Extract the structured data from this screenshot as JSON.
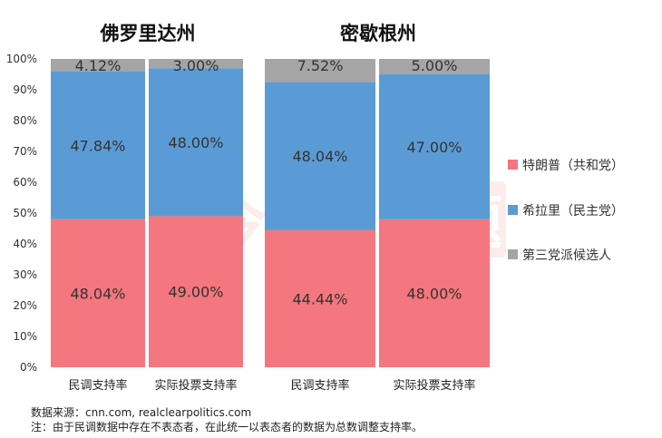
{
  "chart_data": [
    {
      "type": "bar",
      "stacked": true,
      "title": "佛罗里达州",
      "categories": [
        "民调支持率",
        "实际投票支持率"
      ],
      "series": [
        {
          "name": "特朗普（共和党）",
          "values": [
            48.04,
            49.0
          ],
          "labels": [
            "48.04%",
            "49.00%"
          ]
        },
        {
          "name": "希拉里（民主党）",
          "values": [
            47.84,
            48.0
          ],
          "labels": [
            "47.84%",
            "48.00%"
          ]
        },
        {
          "name": "第三党派候选人",
          "values": [
            4.12,
            3.0
          ],
          "labels": [
            "4.12%",
            "3.00%"
          ]
        }
      ],
      "ylim": [
        0,
        100
      ],
      "yticks": [
        "0%",
        "10%",
        "20%",
        "30%",
        "40%",
        "50%",
        "60%",
        "70%",
        "80%",
        "90%",
        "100%"
      ]
    },
    {
      "type": "bar",
      "stacked": true,
      "title": "密歇根州",
      "categories": [
        "民调支持率",
        "实际投票支持率"
      ],
      "series": [
        {
          "name": "特朗普（共和党）",
          "values": [
            44.44,
            48.0
          ],
          "labels": [
            "44.44%",
            "48.00%"
          ]
        },
        {
          "name": "希拉里（民主党）",
          "values": [
            48.04,
            47.0
          ],
          "labels": [
            "48.04%",
            "47.00%"
          ]
        },
        {
          "name": "第三党派候选人",
          "values": [
            7.52,
            5.0
          ],
          "labels": [
            "7.52%",
            "5.00%"
          ]
        }
      ],
      "ylim": [
        0,
        100
      ]
    }
  ],
  "legend": {
    "position": "right",
    "items": [
      {
        "label": "特朗普（共和党）",
        "color": "#f4767e"
      },
      {
        "label": "希拉里（民主党）",
        "color": "#5b9bd5"
      },
      {
        "label": "第三党派候选人",
        "color": "#a5a5a5"
      }
    ]
  },
  "watermark": {
    "text": "今日话题"
  },
  "footnotes": {
    "source": "数据来源：cnn.com, realclearpolitics.com",
    "note": "注：由于民调数据中存在不表态者，在此统一以表态者的数据为总数调整支持率。"
  }
}
